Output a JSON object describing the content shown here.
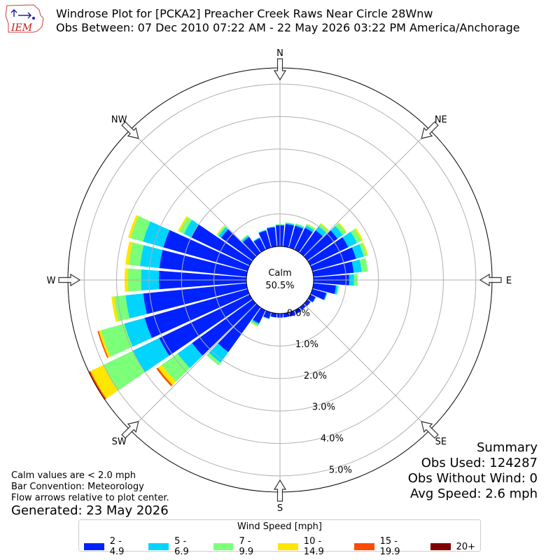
{
  "header": {
    "logo_text": "IEM",
    "title_line1": "Windrose Plot for [PCKA2] Preacher Creek Raws Near Circle 28Wnw",
    "title_line2": "Obs Between: 07 Dec 2010 07:22 AM - 22 May 2026 03:22 PM America/Anchorage"
  },
  "notes": {
    "line1": "Calm values are < 2.0 mph",
    "line2": "Bar Convention: Meteorology",
    "line3": "Flow arrows relative to plot center.",
    "generated": "Generated: 23 May 2026"
  },
  "summary": {
    "title": "Summary",
    "obs_used": "Obs Used: 124287",
    "obs_without_wind": "Obs Without Wind: 0",
    "avg_speed": "Avg Speed: 2.6 mph"
  },
  "legend": {
    "title": "Wind Speed [mph]",
    "items": [
      {
        "label": "2 - 4.9",
        "color": "#0022ff"
      },
      {
        "label": "5 - 6.9",
        "color": "#00d4ff"
      },
      {
        "label": "7 - 9.9",
        "color": "#7cff79"
      },
      {
        "label": "10 - 14.9",
        "color": "#ffe600"
      },
      {
        "label": "15 - 19.9",
        "color": "#ff4a00"
      },
      {
        "label": "20+",
        "color": "#800000"
      }
    ]
  },
  "chart_data": {
    "type": "windrose",
    "calm_label": "Calm",
    "calm_value": "50.5%",
    "directions": [
      "N",
      "NE",
      "E",
      "SE",
      "S",
      "SW",
      "W",
      "NW"
    ],
    "radial_ticks": [
      "0.0%",
      "1.0%",
      "2.0%",
      "3.0%",
      "4.0%",
      "5.0%"
    ],
    "radial_max": 5.5,
    "bin_labels": [
      "2 - 4.9",
      "5 - 6.9",
      "7 - 9.9",
      "10 - 14.9",
      "15 - 19.9",
      "20+"
    ],
    "bin_colors": [
      "#0022ff",
      "#00d4ff",
      "#7cff79",
      "#ffe600",
      "#ff4a00",
      "#800000"
    ],
    "sectors": [
      {
        "dir": 0,
        "values": [
          0.65,
          0.02,
          0.01,
          0.0,
          0.0,
          0.0
        ]
      },
      {
        "dir": 10,
        "values": [
          0.7,
          0.03,
          0.02,
          0.0,
          0.0,
          0.0
        ]
      },
      {
        "dir": 20,
        "values": [
          0.7,
          0.04,
          0.03,
          0.0,
          0.0,
          0.0
        ]
      },
      {
        "dir": 30,
        "values": [
          0.75,
          0.08,
          0.05,
          0.01,
          0.0,
          0.0
        ]
      },
      {
        "dir": 40,
        "values": [
          0.85,
          0.15,
          0.1,
          0.02,
          0.0,
          0.0
        ]
      },
      {
        "dir": 50,
        "values": [
          1.15,
          0.2,
          0.12,
          0.03,
          0.0,
          0.0
        ]
      },
      {
        "dir": 60,
        "values": [
          1.3,
          0.3,
          0.15,
          0.05,
          0.0,
          0.0
        ]
      },
      {
        "dir": 70,
        "values": [
          1.4,
          0.25,
          0.1,
          0.03,
          0.0,
          0.0
        ]
      },
      {
        "dir": 80,
        "values": [
          1.25,
          0.25,
          0.18,
          0.0,
          0.0,
          0.0
        ]
      },
      {
        "dir": 90,
        "values": [
          1.1,
          0.15,
          0.1,
          0.0,
          0.0,
          0.0
        ]
      },
      {
        "dir": 100,
        "values": [
          0.7,
          0.06,
          0.03,
          0.0,
          0.0,
          0.0
        ]
      },
      {
        "dir": 110,
        "values": [
          0.45,
          0.02,
          0.01,
          0.0,
          0.0,
          0.0
        ]
      },
      {
        "dir": 120,
        "values": [
          0.18,
          0.01,
          0.0,
          0.0,
          0.0,
          0.0
        ]
      },
      {
        "dir": 130,
        "values": [
          0.12,
          0.0,
          0.0,
          0.0,
          0.0,
          0.0
        ]
      },
      {
        "dir": 140,
        "values": [
          0.1,
          0.0,
          0.0,
          0.0,
          0.0,
          0.0
        ]
      },
      {
        "dir": 150,
        "values": [
          0.12,
          0.0,
          0.0,
          0.0,
          0.0,
          0.0
        ]
      },
      {
        "dir": 160,
        "values": [
          0.13,
          0.0,
          0.0,
          0.0,
          0.0,
          0.0
        ]
      },
      {
        "dir": 170,
        "values": [
          0.12,
          0.0,
          0.0,
          0.0,
          0.0,
          0.0
        ]
      },
      {
        "dir": 180,
        "values": [
          0.12,
          0.0,
          0.0,
          0.0,
          0.0,
          0.0
        ]
      },
      {
        "dir": 190,
        "values": [
          0.12,
          0.0,
          0.0,
          0.0,
          0.0,
          0.0
        ]
      },
      {
        "dir": 200,
        "values": [
          0.2,
          0.01,
          0.0,
          0.0,
          0.0,
          0.0
        ]
      },
      {
        "dir": 210,
        "values": [
          0.45,
          0.05,
          0.04,
          0.02,
          0.0,
          0.0
        ]
      },
      {
        "dir": 220,
        "values": [
          1.7,
          0.4,
          0.1,
          0.0,
          0.0,
          0.0
        ]
      },
      {
        "dir": 230,
        "values": [
          2.3,
          0.55,
          0.6,
          0.15,
          0.05,
          0.0
        ]
      },
      {
        "dir": 240,
        "values": [
          3.1,
          0.9,
          1.0,
          0.45,
          0.06,
          0.0
        ]
      },
      {
        "dir": 250,
        "values": [
          3.3,
          0.65,
          0.75,
          0.07,
          0.03,
          0.0
        ]
      },
      {
        "dir": 260,
        "values": [
          3.2,
          0.55,
          0.35,
          0.08,
          0.0,
          0.0
        ]
      },
      {
        "dir": 270,
        "values": [
          2.7,
          0.55,
          0.4,
          0.1,
          0.0,
          0.0
        ]
      },
      {
        "dir": 280,
        "values": [
          2.7,
          0.6,
          0.35,
          0.1,
          0.0,
          0.0
        ]
      },
      {
        "dir": 290,
        "values": [
          2.7,
          0.65,
          0.4,
          0.07,
          0.0,
          0.0
        ]
      },
      {
        "dir": 300,
        "values": [
          2.0,
          0.25,
          0.15,
          0.05,
          0.0,
          0.0
        ]
      },
      {
        "dir": 310,
        "values": [
          1.2,
          0.1,
          0.05,
          0.02,
          0.0,
          0.0
        ]
      },
      {
        "dir": 320,
        "values": [
          0.6,
          0.05,
          0.03,
          0.0,
          0.0,
          0.0
        ]
      },
      {
        "dir": 330,
        "values": [
          0.4,
          0.02,
          0.0,
          0.0,
          0.0,
          0.0
        ]
      },
      {
        "dir": 340,
        "values": [
          0.55,
          0.02,
          0.0,
          0.0,
          0.0,
          0.0
        ]
      },
      {
        "dir": 350,
        "values": [
          0.6,
          0.02,
          0.0,
          0.0,
          0.0,
          0.0
        ]
      }
    ]
  }
}
